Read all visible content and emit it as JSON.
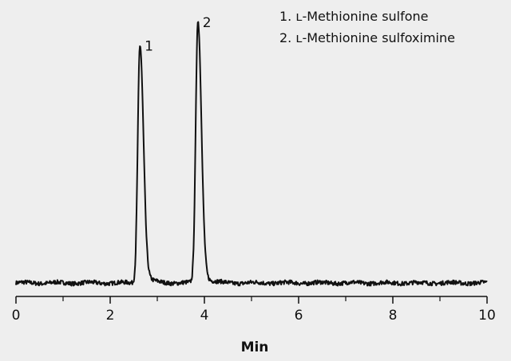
{
  "chart_data": {
    "type": "line",
    "xlabel": "Min",
    "ylabel": "",
    "xlim": [
      0,
      10
    ],
    "ylim": [
      -5,
      105
    ],
    "x_ticks_major": [
      0,
      2,
      4,
      6,
      8,
      10
    ],
    "x_tick_labels": [
      "0",
      "2",
      "4",
      "6",
      "8",
      "10"
    ],
    "x_ticks_minor": [
      1,
      3,
      5,
      7,
      9
    ],
    "grid": false,
    "y_axis_shown": false,
    "line_color": "#111111",
    "background": "#eeeeee",
    "peaks": [
      {
        "label": "1",
        "retention_time": 2.63,
        "relative_height": 91
      },
      {
        "label": "2",
        "retention_time": 3.86,
        "relative_height": 100
      }
    ],
    "legend": {
      "position": "top-right",
      "entries": [
        "1. ʟ-Methionine sulfone",
        "2. ʟ-Methionine sulfoximine"
      ]
    }
  }
}
